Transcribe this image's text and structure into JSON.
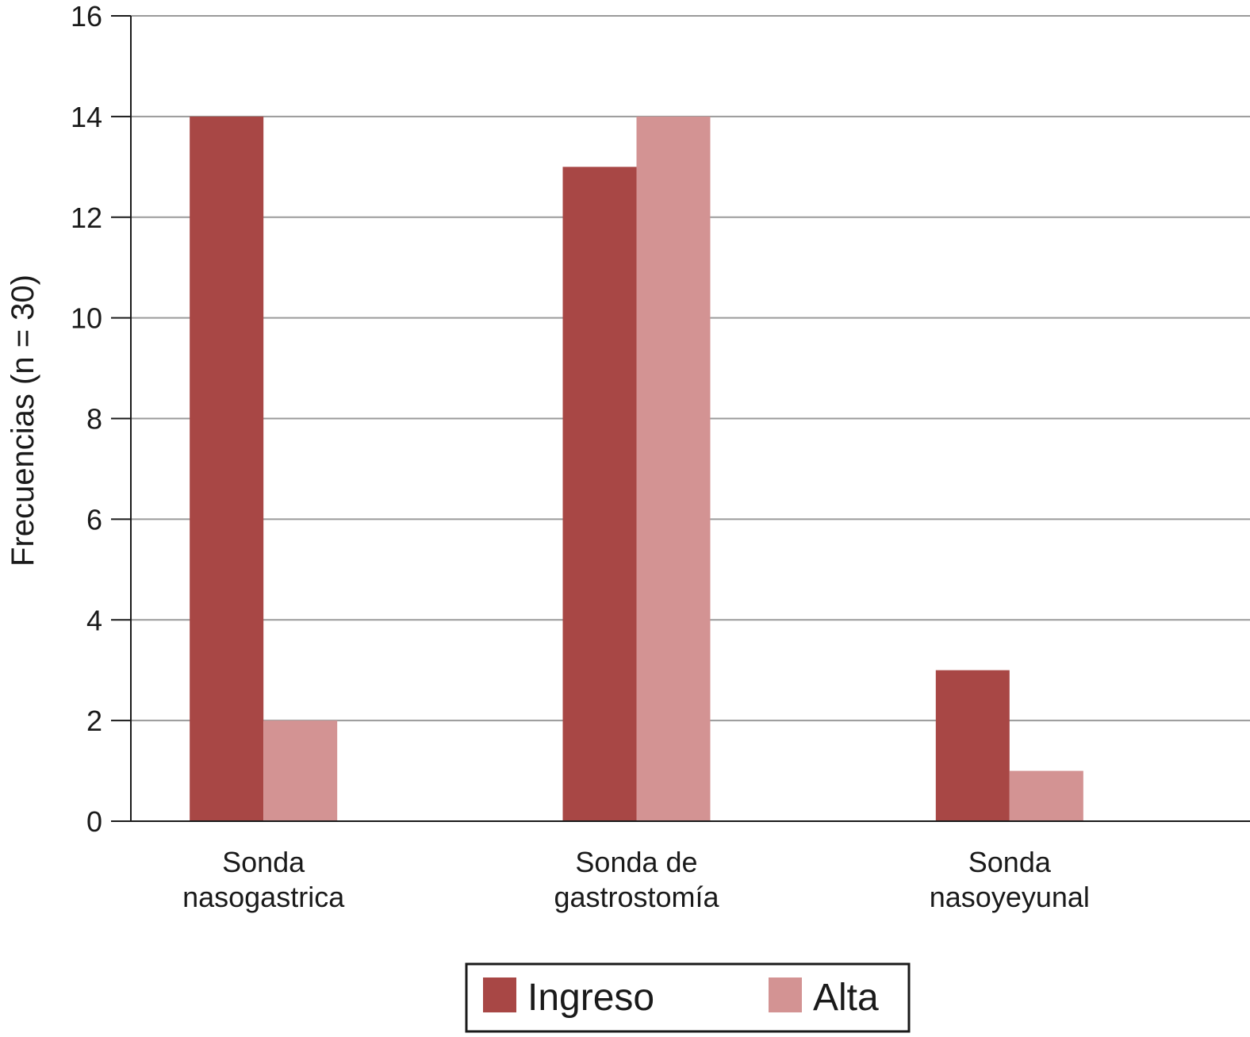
{
  "chart_data": {
    "type": "bar",
    "y_label": "Frecuencias (n = 30)",
    "categories": [
      [
        "Sonda",
        "nasogastrica"
      ],
      [
        "Sonda de",
        "gastrostomía"
      ],
      [
        "Sonda",
        "nasoyeyunal"
      ]
    ],
    "series": [
      {
        "name": "Ingreso",
        "color": "#a84745",
        "values": [
          14,
          13,
          3
        ]
      },
      {
        "name": "Alta",
        "color": "#d39393",
        "values": [
          2,
          14,
          1
        ]
      }
    ],
    "ylim": [
      0,
      16
    ],
    "yticks": [
      0,
      2,
      4,
      6,
      8,
      10,
      12,
      14,
      16
    ],
    "grid": true,
    "legend": "bottom"
  }
}
